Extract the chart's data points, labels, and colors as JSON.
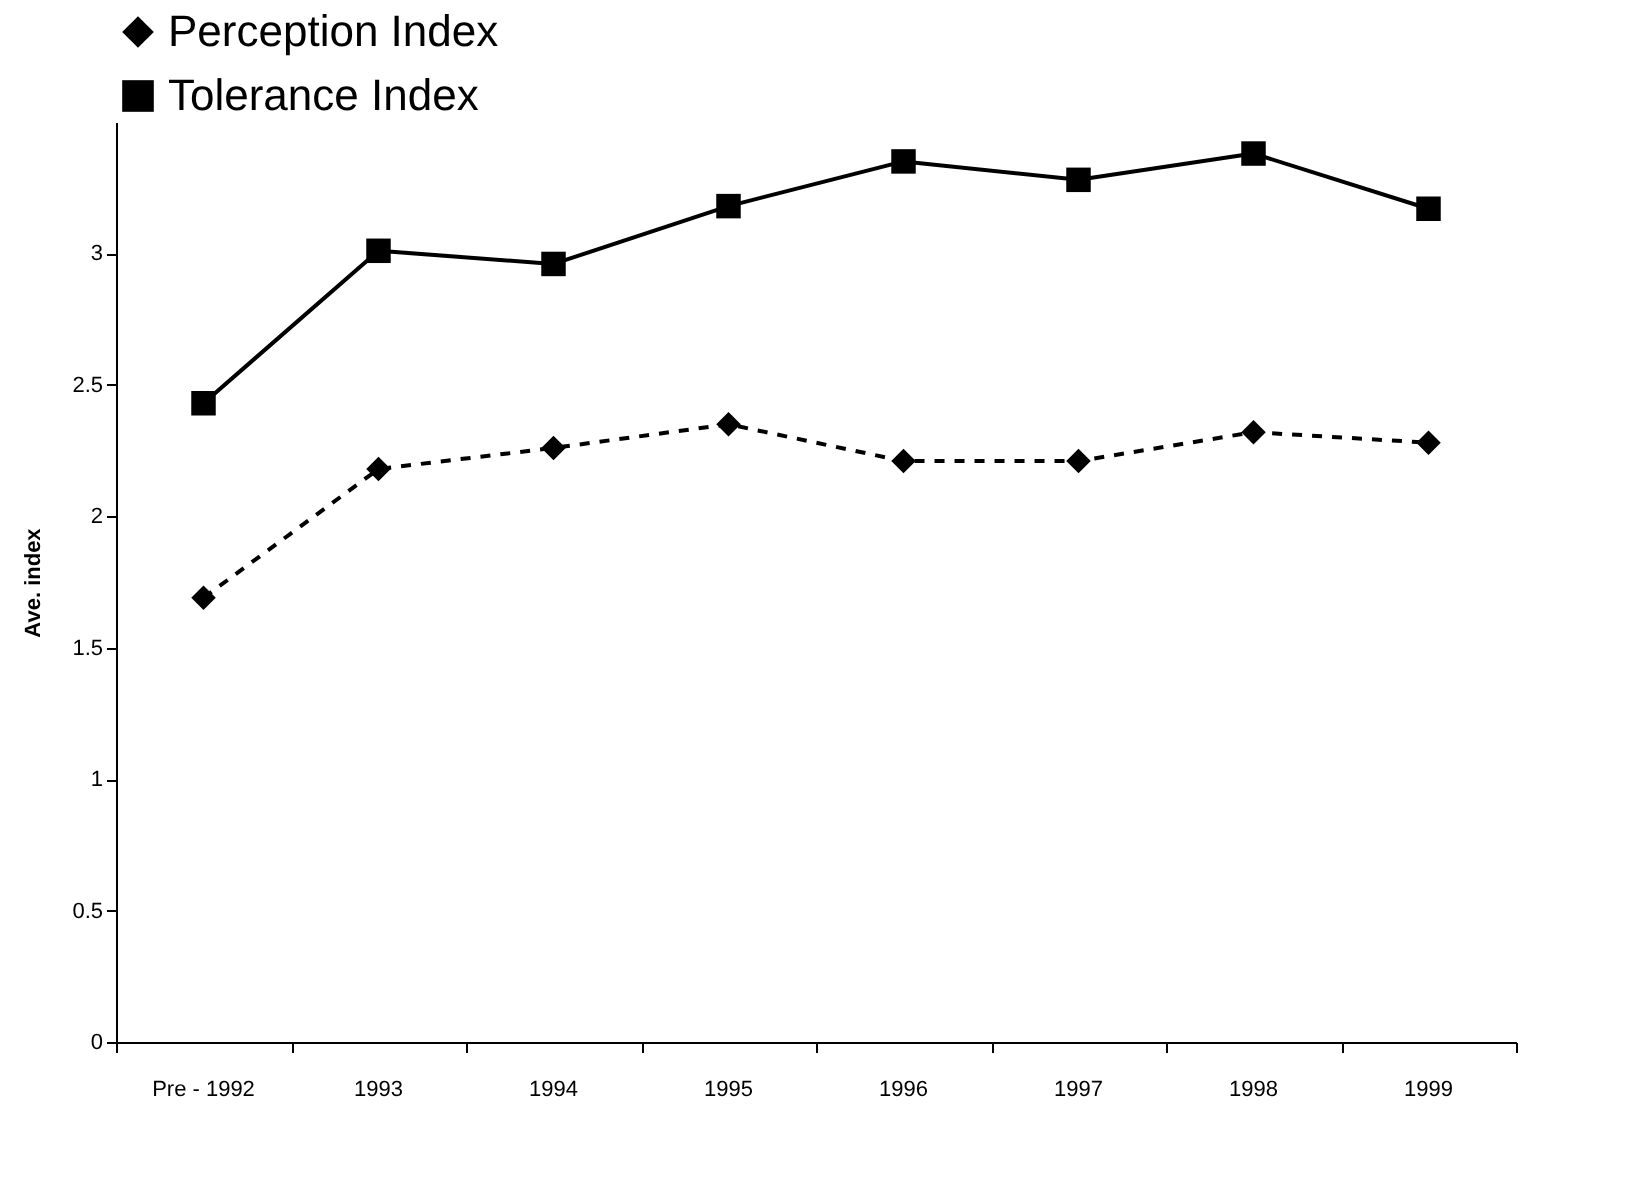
{
  "chart_data": {
    "type": "line",
    "ylabel": "Ave. index",
    "categories": [
      "Pre - 1992",
      "1993",
      "1994",
      "1995",
      "1996",
      "1997",
      "1998",
      "1999"
    ],
    "series": [
      {
        "name": "Perception Index",
        "color": "#000000",
        "marker": "diamond",
        "line_style": "dashed",
        "values": [
          1.69,
          2.18,
          2.26,
          2.35,
          2.21,
          2.21,
          2.32,
          2.28
        ]
      },
      {
        "name": "Tolerance Index",
        "color": "#000000",
        "marker": "square",
        "line_style": "solid",
        "values": [
          2.43,
          3.01,
          2.96,
          3.18,
          3.35,
          3.28,
          3.38,
          3.17
        ]
      }
    ],
    "ylim": [
      0,
      3.5
    ],
    "yticks": [
      0,
      0.5,
      1,
      1.5,
      2,
      2.5,
      3
    ],
    "grid": false,
    "legend": "top left"
  }
}
